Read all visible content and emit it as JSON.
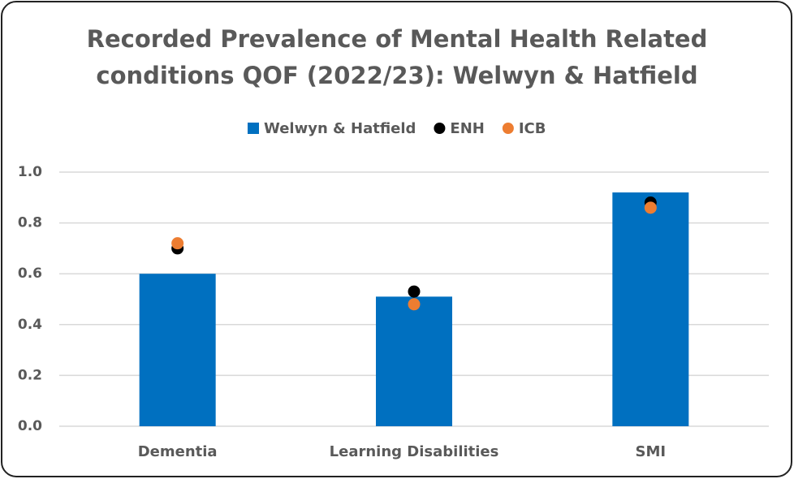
{
  "chart_data": {
    "type": "bar",
    "title": [
      "Recorded Prevalence of Mental Health Related",
      "conditions QOF (2022/23): Welwyn & Hatfield"
    ],
    "categories": [
      "Dementia",
      "Learning Disabilities",
      "SMI"
    ],
    "series": [
      {
        "name": "Welwyn & Hatfield",
        "type": "bar",
        "color": "#0070c0",
        "values": [
          0.6,
          0.51,
          0.92
        ]
      },
      {
        "name": "ENH",
        "type": "scatter",
        "color": "#000000",
        "values": [
          0.7,
          0.53,
          0.88
        ]
      },
      {
        "name": "ICB",
        "type": "scatter",
        "color": "#ed7d31",
        "values": [
          0.72,
          0.48,
          0.86
        ]
      }
    ],
    "ylim": [
      0,
      1
    ],
    "yticks": [
      {
        "value": 0,
        "label": "0.0"
      },
      0.2,
      0.4,
      0.6,
      0.8,
      {
        "value": 1,
        "label": "1.0"
      }
    ],
    "grid": true,
    "legend": "top"
  }
}
